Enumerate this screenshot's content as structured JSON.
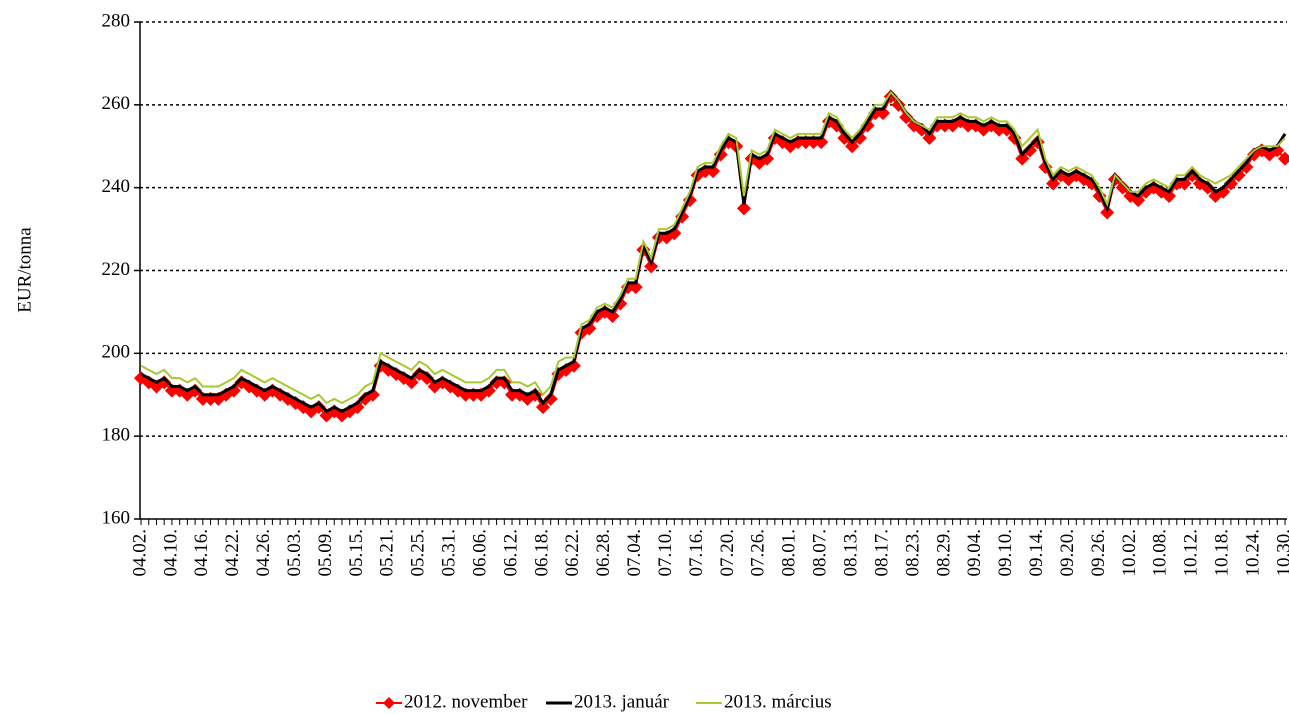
{
  "chart_data": {
    "type": "line",
    "ylabel": "EUR/tonna",
    "categories": [
      "04.02.",
      null,
      null,
      null,
      "04.10.",
      null,
      null,
      null,
      "04.16.",
      null,
      null,
      null,
      "04.22.",
      null,
      null,
      null,
      "04.26.",
      null,
      null,
      null,
      "05.03.",
      null,
      null,
      null,
      "05.09.",
      null,
      null,
      null,
      "05.15.",
      null,
      null,
      null,
      "05.21.",
      null,
      null,
      null,
      "05.25.",
      null,
      null,
      null,
      "05.31.",
      null,
      null,
      null,
      "06.06.",
      null,
      null,
      null,
      "06.12.",
      null,
      null,
      null,
      "06.18.",
      null,
      null,
      null,
      "06.22.",
      null,
      null,
      null,
      "06.28.",
      null,
      null,
      null,
      "07.04.",
      null,
      null,
      null,
      "07.10.",
      null,
      null,
      null,
      "07.16.",
      null,
      null,
      null,
      "07.20.",
      null,
      null,
      null,
      "07.26.",
      null,
      null,
      null,
      "08.01.",
      null,
      null,
      null,
      "08.07.",
      null,
      null,
      null,
      "08.13.",
      null,
      null,
      null,
      "08.17.",
      null,
      null,
      null,
      "08.23.",
      null,
      null,
      null,
      "08.29.",
      null,
      null,
      null,
      "09.04.",
      null,
      null,
      null,
      "09.10.",
      null,
      null,
      null,
      "09.14.",
      null,
      null,
      null,
      "09.20.",
      null,
      null,
      null,
      "09.26.",
      null,
      null,
      null,
      "10.02.",
      null,
      null,
      null,
      "10.08.",
      null,
      null,
      null,
      "10.12.",
      null,
      null,
      null,
      "10.18.",
      null,
      null,
      null,
      "10.24.",
      null,
      null,
      null,
      "10.30."
    ],
    "series": [
      {
        "name": "2012. november",
        "color": "#ff0000",
        "marker": "diamond",
        "values": [
          194,
          193,
          192,
          193,
          191,
          191,
          190,
          191,
          189,
          189,
          189,
          190,
          191,
          193,
          192,
          191,
          190,
          191,
          190,
          189,
          188,
          187,
          186,
          187,
          185,
          186,
          185,
          186,
          187,
          189,
          190,
          197,
          196,
          195,
          194,
          193,
          195,
          194,
          192,
          193,
          192,
          191,
          190,
          190,
          190,
          191,
          193,
          193,
          190,
          190,
          189,
          190,
          187,
          189,
          195,
          196,
          197,
          205,
          206,
          209,
          210,
          209,
          212,
          216,
          216,
          225,
          221,
          228,
          228,
          229,
          233,
          237,
          243,
          244,
          244,
          248,
          251,
          250,
          235,
          247,
          246,
          247,
          252,
          251,
          250,
          251,
          251,
          251,
          251,
          256,
          255,
          252,
          250,
          252,
          255,
          258,
          258,
          262,
          260,
          257,
          255,
          254,
          252,
          255,
          255,
          255,
          256,
          255,
          255,
          254,
          255,
          254,
          254,
          252,
          247,
          249,
          251,
          245,
          241,
          243,
          242,
          243,
          242,
          241,
          238,
          234,
          242,
          240,
          238,
          237,
          239,
          240,
          239,
          238,
          241,
          241,
          243,
          241,
          240,
          238,
          239,
          241,
          243,
          245,
          248,
          249,
          248,
          249,
          247
        ]
      },
      {
        "name": "2013. január",
        "color": "#000000",
        "values": [
          195,
          194,
          193,
          194,
          192,
          192,
          191,
          192,
          190,
          190,
          190,
          191,
          192,
          194,
          193,
          192,
          191,
          192,
          191,
          190,
          189,
          188,
          187,
          188,
          186,
          187,
          186,
          187,
          188,
          190,
          191,
          198,
          197,
          196,
          195,
          194,
          196,
          195,
          193,
          194,
          193,
          192,
          191,
          191,
          191,
          192,
          194,
          194,
          191,
          191,
          190,
          191,
          188,
          190,
          196,
          197,
          198,
          206,
          207,
          210,
          211,
          210,
          213,
          217,
          217,
          226,
          222,
          229,
          229,
          230,
          234,
          238,
          244,
          245,
          245,
          249,
          252,
          251,
          236,
          248,
          247,
          248,
          253,
          252,
          251,
          252,
          252,
          252,
          252,
          257,
          256,
          253,
          251,
          253,
          256,
          259,
          259,
          263,
          261,
          258,
          256,
          255,
          253,
          256,
          256,
          256,
          257,
          256,
          256,
          255,
          256,
          255,
          255,
          253,
          248,
          250,
          252,
          246,
          242,
          244,
          243,
          244,
          243,
          242,
          239,
          235,
          243,
          241,
          239,
          238,
          240,
          241,
          240,
          239,
          242,
          242,
          244,
          242,
          241,
          239,
          240,
          242,
          244,
          246,
          249,
          250,
          249,
          250,
          253
        ]
      },
      {
        "name": "2013. március",
        "color": "#a6c930",
        "values": [
          197,
          196,
          195,
          196,
          194,
          194,
          193,
          194,
          192,
          192,
          192,
          193,
          194,
          196,
          195,
          194,
          193,
          194,
          193,
          192,
          191,
          190,
          189,
          190,
          188,
          189,
          188,
          189,
          190,
          192,
          193,
          200,
          199,
          198,
          197,
          196,
          198,
          197,
          195,
          196,
          195,
          194,
          193,
          193,
          193,
          194,
          196,
          196,
          193,
          193,
          192,
          193,
          190,
          192,
          198,
          199,
          199,
          207,
          208,
          211,
          212,
          211,
          214,
          218,
          218,
          227,
          223,
          230,
          230,
          231,
          235,
          239,
          245,
          246,
          246,
          250,
          253,
          252,
          238,
          249,
          248,
          249,
          254,
          253,
          252,
          253,
          253,
          253,
          253,
          258,
          257,
          254,
          252,
          254,
          257,
          260,
          260,
          263,
          261,
          258,
          256,
          255,
          254,
          257,
          257,
          257,
          258,
          257,
          257,
          256,
          257,
          256,
          256,
          254,
          250,
          252,
          254,
          247,
          243,
          245,
          244,
          245,
          244,
          243,
          240,
          236,
          243,
          241,
          239,
          239,
          241,
          242,
          241,
          240,
          243,
          243,
          245,
          243,
          242,
          241,
          242,
          243,
          245,
          247,
          249,
          250,
          250,
          250,
          252
        ]
      }
    ],
    "ylim": [
      160,
      280
    ],
    "yticks": [
      160,
      180,
      200,
      220,
      240,
      260,
      280
    ],
    "grid": true,
    "legend": "bottom"
  }
}
